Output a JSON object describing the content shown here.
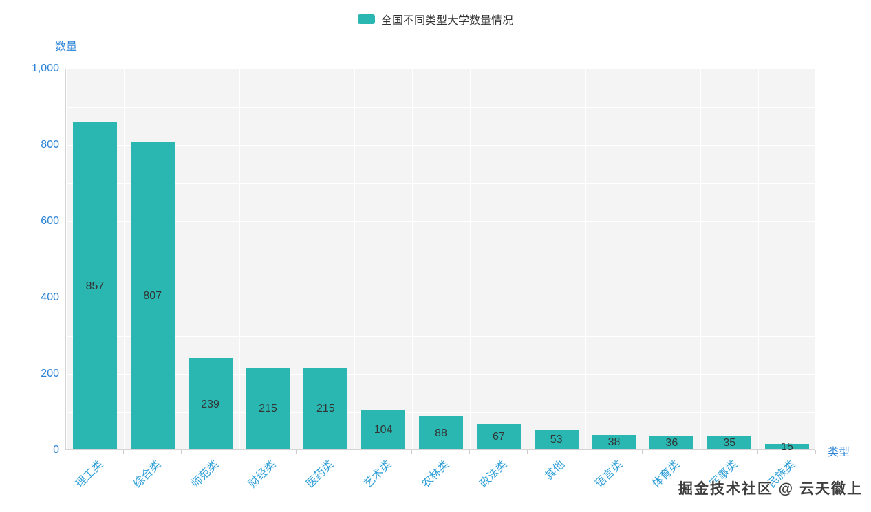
{
  "chart_data": {
    "type": "bar",
    "title": "全国不同类型大学数量情况",
    "xlabel": "类型",
    "ylabel": "数量",
    "categories": [
      "理工类",
      "综合类",
      "师范类",
      "财经类",
      "医药类",
      "艺术类",
      "农林类",
      "政法类",
      "其他",
      "语言类",
      "体育类",
      "军事类",
      "民族类"
    ],
    "values": [
      857,
      807,
      239,
      215,
      215,
      104,
      88,
      67,
      53,
      38,
      36,
      35,
      15
    ],
    "ylim": [
      0,
      1000
    ],
    "y_ticks": [
      "1,000",
      "800",
      "600",
      "400",
      "200",
      "0"
    ],
    "grid": true,
    "legend_position": "top-center",
    "bar_color": "#2ab7b1",
    "value_label_color": "#333333",
    "axis_text_color": "#2b83d7",
    "category_text_color": "#2e9fd6",
    "plot_background": "#f4f4f4",
    "gridline_color": "#ffffff"
  },
  "legend": {
    "label": "全国不同类型大学数量情况"
  },
  "watermark": "掘金技术社区 @ 云天徽上"
}
